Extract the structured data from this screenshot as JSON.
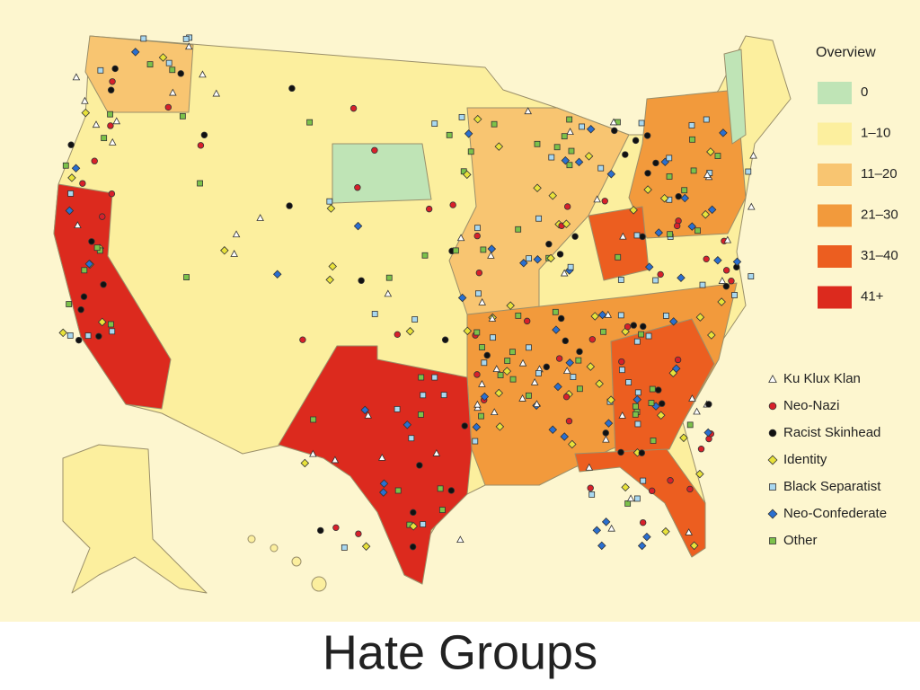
{
  "legend": {
    "title": "Overview",
    "ranges": [
      {
        "label": "0",
        "color": "#bfe4b6"
      },
      {
        "label": "1–10",
        "color": "#fcef9e"
      },
      {
        "label": "11–20",
        "color": "#f8c571"
      },
      {
        "label": "21–30",
        "color": "#f29a3c"
      },
      {
        "label": "31–40",
        "color": "#ec5e20"
      },
      {
        "label": "41+",
        "color": "#dc2a1e"
      }
    ],
    "groups": [
      {
        "label": "Ku Klux Klan",
        "shape": "triangle",
        "color": "#ffffff"
      },
      {
        "label": "Neo-Nazi",
        "shape": "circle",
        "color": "#d8202a"
      },
      {
        "label": "Racist Skinhead",
        "shape": "circle",
        "color": "#111111"
      },
      {
        "label": "Identity",
        "shape": "diamond",
        "color": "#e8e23a"
      },
      {
        "label": "Black Separatist",
        "shape": "square",
        "color": "#a9d8f0"
      },
      {
        "label": "Neo-Confederate",
        "shape": "diamond",
        "color": "#2a6fd0"
      },
      {
        "label": "Other",
        "shape": "square",
        "color": "#7cc24a"
      }
    ]
  },
  "caption": "Hate Groups"
}
